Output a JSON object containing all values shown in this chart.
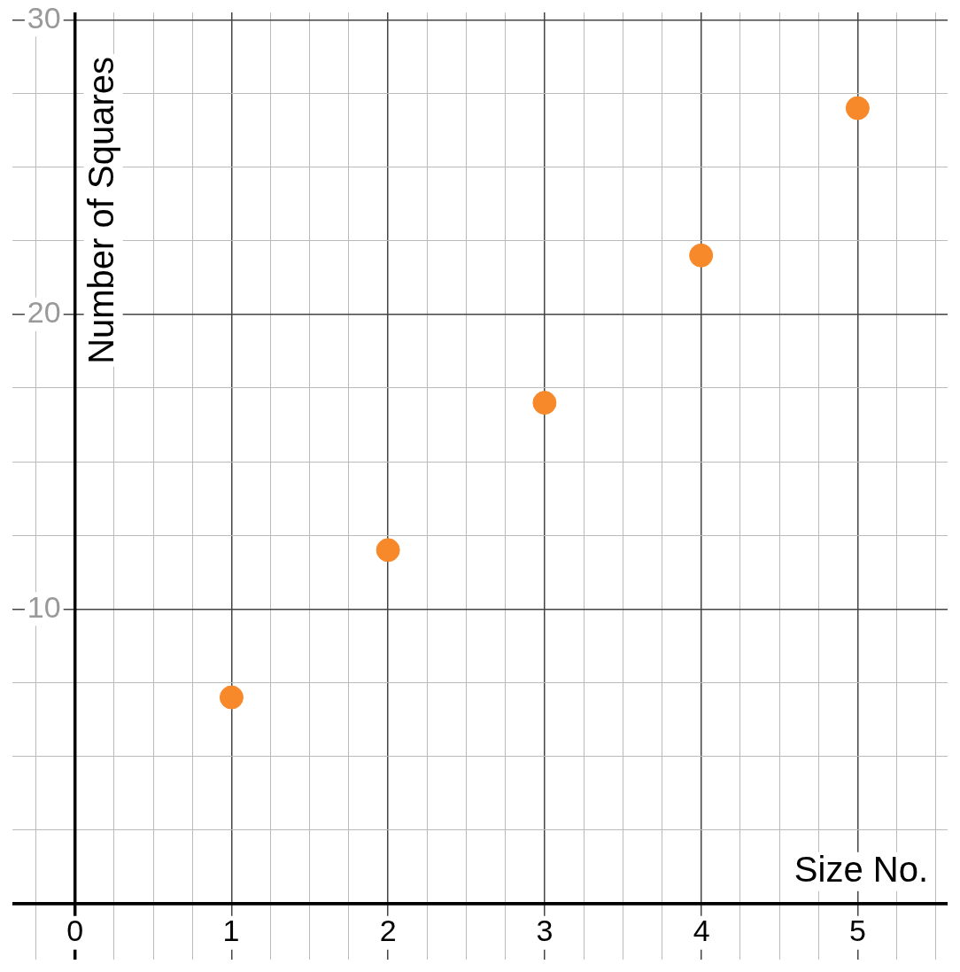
{
  "chart_data": {
    "type": "scatter",
    "xlabel": "Size No.",
    "ylabel": "Number of Squares",
    "x": [
      1,
      2,
      3,
      4,
      5
    ],
    "series": [
      {
        "color": "#f7892b",
        "values": [
          7,
          12,
          17,
          22,
          27
        ]
      }
    ],
    "xlim": [
      -0.4,
      5.575
    ],
    "ylim": [
      -1.9,
      30.25
    ],
    "xticks": [
      {
        "value": -0.25,
        "label": null
      },
      0,
      {
        "value": 0.25,
        "label": null
      },
      {
        "value": 0.5,
        "label": null
      },
      {
        "value": 0.75,
        "label": null
      },
      1,
      {
        "value": 1.25,
        "label": null
      },
      {
        "value": 1.5,
        "label": null
      },
      {
        "value": 1.75,
        "label": null
      },
      2,
      {
        "value": 2.25,
        "label": null
      },
      {
        "value": 2.5,
        "label": null
      },
      {
        "value": 2.75,
        "label": null
      },
      3,
      {
        "value": 3.25,
        "label": null
      },
      {
        "value": 3.5,
        "label": null
      },
      {
        "value": 3.75,
        "label": null
      },
      4,
      {
        "value": 4.25,
        "label": null
      },
      {
        "value": 4.5,
        "label": null
      },
      {
        "value": 4.75,
        "label": null
      },
      5,
      {
        "value": 5.25,
        "label": null
      },
      {
        "value": 5.5,
        "label": null
      }
    ],
    "yticks": [
      {
        "value": 0,
        "label": null
      },
      {
        "value": 2.5,
        "label": null
      },
      {
        "value": 5,
        "label": null
      },
      {
        "value": 7.5,
        "label": null
      },
      10,
      {
        "value": 12.5,
        "label": null
      },
      {
        "value": 15,
        "label": null
      },
      {
        "value": 17.5,
        "label": null
      },
      20,
      {
        "value": 22.5,
        "label": null
      },
      {
        "value": 25,
        "label": null
      },
      {
        "value": 27.5,
        "label": null
      },
      30
    ],
    "grid": true,
    "legend": false,
    "marker": "circle"
  }
}
